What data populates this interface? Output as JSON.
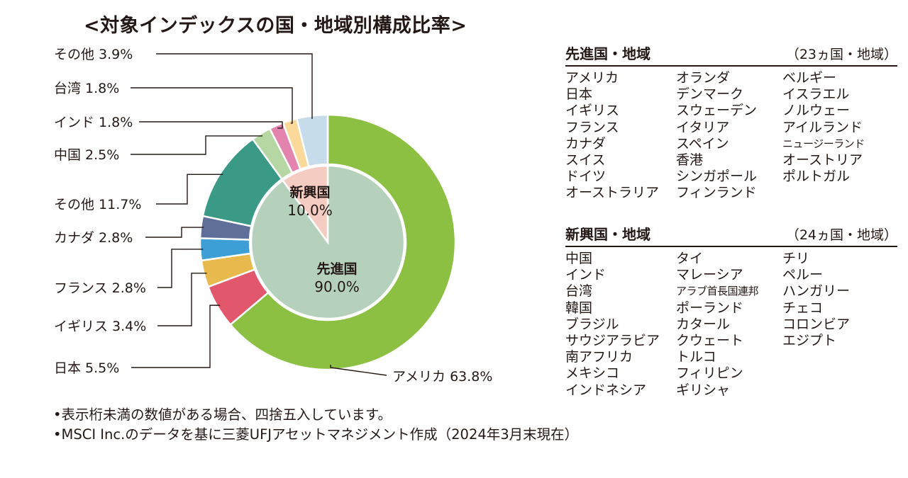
{
  "title": "<対象インデックスの国・地域別構成比率>",
  "chart_data": {
    "type": "pie",
    "outer_ring": [
      {
        "label": "アメリカ",
        "value": 63.8,
        "display": "アメリカ 63.8%",
        "color": "#8cc043"
      },
      {
        "label": "日本",
        "value": 5.5,
        "display": "日本 5.5%",
        "color": "#e2576b"
      },
      {
        "label": "イギリス",
        "value": 3.4,
        "display": "イギリス 3.4%",
        "color": "#e8ba4e"
      },
      {
        "label": "フランス",
        "value": 2.8,
        "display": "フランス 2.8%",
        "color": "#3d9fd6"
      },
      {
        "label": "カナダ",
        "value": 2.8,
        "display": "カナダ 2.8%",
        "color": "#5f6f9a"
      },
      {
        "label": "その他",
        "value": 11.7,
        "display": "その他 11.7%",
        "color": "#3a9a86"
      },
      {
        "label": "中国",
        "value": 2.5,
        "display": "中国 2.5%",
        "color": "#b6d7a3"
      },
      {
        "label": "インド",
        "value": 1.8,
        "display": "インド 1.8%",
        "color": "#e384ae"
      },
      {
        "label": "台湾",
        "value": 1.8,
        "display": "台湾 1.8%",
        "color": "#fbd99a"
      },
      {
        "label": "その他",
        "value": 3.9,
        "display": "その他 3.9%",
        "color": "#c6dcea"
      }
    ],
    "inner_pie": [
      {
        "label": "先進国",
        "value": 90.0,
        "display": "90.0%",
        "color": "#b5d1bb"
      },
      {
        "label": "新興国",
        "value": 10.0,
        "display": "10.0%",
        "color": "#f5ccc1"
      }
    ]
  },
  "developed": {
    "name": "先進国・地域",
    "count": "（23ヵ国・地域）",
    "columns": [
      [
        "アメリカ",
        "日本",
        "イギリス",
        "フランス",
        "カナダ",
        "スイス",
        "ドイツ",
        "オーストラリア"
      ],
      [
        "オランダ",
        "デンマーク",
        "スウェーデン",
        "イタリア",
        "スペイン",
        "香港",
        "シンガポール",
        "フィンランド"
      ],
      [
        "ベルギー",
        "イスラエル",
        "ノルウェー",
        "アイルランド",
        "ニュージーランド",
        "オーストリア",
        "ポルトガル"
      ]
    ]
  },
  "emerging": {
    "name": "新興国・地域",
    "count": "（24ヵ国・地域）",
    "columns": [
      [
        "中国",
        "インド",
        "台湾",
        "韓国",
        "ブラジル",
        "サウジアラビア",
        "南アフリカ",
        "メキシコ",
        "インドネシア"
      ],
      [
        "タイ",
        "マレーシア",
        "アラブ首長国連邦",
        "ポーランド",
        "カタール",
        "クウェート",
        "トルコ",
        "フィリピン",
        "ギリシャ"
      ],
      [
        "チリ",
        "ペルー",
        "ハンガリー",
        "チェコ",
        "コロンビア",
        "エジプト"
      ]
    ]
  },
  "notes": [
    "•表示桁未満の数値がある場合、四捨五入しています。",
    "•MSCI Inc.のデータを基に三菱UFJアセットマネジメント作成（2024年3月末現在）"
  ]
}
